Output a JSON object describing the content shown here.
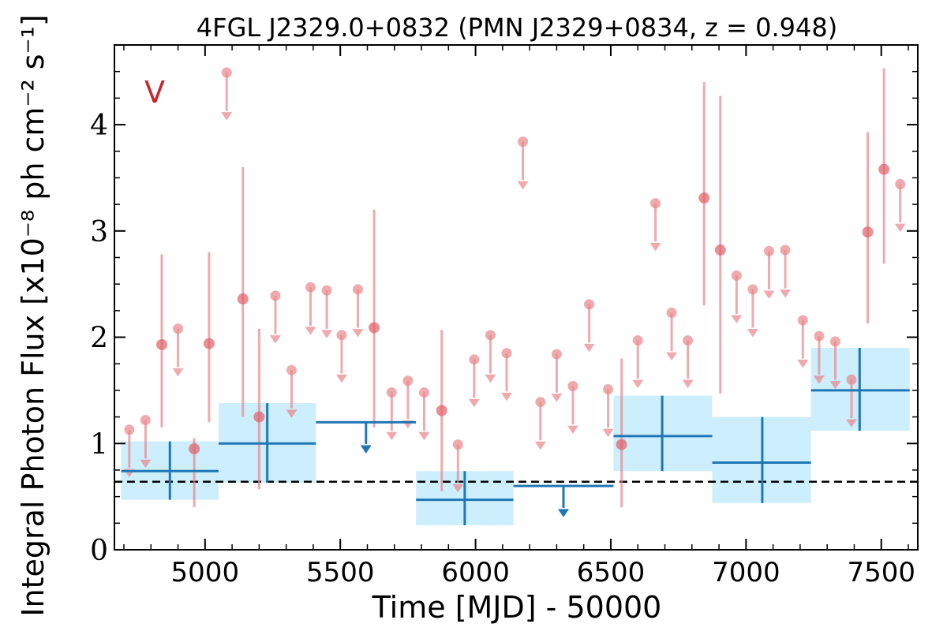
{
  "chart_data": {
    "type": "scatter",
    "title": "4FGL J2329.0+0832 (PMN J2329+0834, z = 0.948)",
    "xlabel": "Time [MJD] - 50000",
    "ylabel": "Integral Photon Flux [x10⁻⁸ ph cm⁻² s⁻¹]",
    "panel_tag": "V",
    "xlim": [
      4665,
      7635
    ],
    "ylim": [
      0,
      4.75
    ],
    "xticks": [
      5000,
      5500,
      6000,
      6500,
      7000,
      7500
    ],
    "yticks": [
      0,
      1,
      2,
      3,
      4
    ],
    "xtick_labels": [
      "5000",
      "5500",
      "6000",
      "6500",
      "7000",
      "7500"
    ],
    "ytick_labels": [
      "0",
      "1",
      "2",
      "3",
      "4"
    ],
    "mean_flux": 0.64,
    "colors": {
      "monthly": "#e8868a",
      "binned": "#1f77b4",
      "band": "#cdeefc",
      "mean_line": "#000000",
      "panel_tag": "#c8252c"
    },
    "monthly_detections": [
      {
        "x": 4960,
        "y": 0.95,
        "lo": 0.4,
        "hi": 1.05
      },
      {
        "x": 4840,
        "y": 1.93,
        "lo": 1.15,
        "hi": 2.78
      },
      {
        "x": 5015,
        "y": 1.94,
        "lo": 1.2,
        "hi": 2.8
      },
      {
        "x": 5140,
        "y": 2.36,
        "lo": 1.25,
        "hi": 3.6
      },
      {
        "x": 5200,
        "y": 1.25,
        "lo": 0.57,
        "hi": 2.08
      },
      {
        "x": 5625,
        "y": 2.09,
        "lo": 1.15,
        "hi": 3.2
      },
      {
        "x": 5875,
        "y": 1.31,
        "lo": 0.55,
        "hi": 2.07
      },
      {
        "x": 6540,
        "y": 0.99,
        "lo": 0.4,
        "hi": 1.8
      },
      {
        "x": 6845,
        "y": 3.31,
        "lo": 2.3,
        "hi": 4.4
      },
      {
        "x": 6905,
        "y": 2.82,
        "lo": 1.47,
        "hi": 4.27
      },
      {
        "x": 7450,
        "y": 2.99,
        "lo": 2.13,
        "hi": 3.93
      },
      {
        "x": 7510,
        "y": 3.58,
        "lo": 2.69,
        "hi": 4.53
      }
    ],
    "monthly_upper_limits": [
      {
        "x": 4720,
        "y": 1.13
      },
      {
        "x": 4780,
        "y": 1.22
      },
      {
        "x": 4900,
        "y": 2.08
      },
      {
        "x": 5080,
        "y": 4.49
      },
      {
        "x": 5260,
        "y": 2.39
      },
      {
        "x": 5320,
        "y": 1.69
      },
      {
        "x": 5390,
        "y": 2.47
      },
      {
        "x": 5450,
        "y": 2.44
      },
      {
        "x": 5505,
        "y": 2.02
      },
      {
        "x": 5565,
        "y": 2.45
      },
      {
        "x": 5690,
        "y": 1.48
      },
      {
        "x": 5750,
        "y": 1.59
      },
      {
        "x": 5810,
        "y": 1.48
      },
      {
        "x": 5935,
        "y": 0.99
      },
      {
        "x": 5995,
        "y": 1.79
      },
      {
        "x": 6055,
        "y": 2.02
      },
      {
        "x": 6115,
        "y": 1.85
      },
      {
        "x": 6175,
        "y": 3.84
      },
      {
        "x": 6240,
        "y": 1.39
      },
      {
        "x": 6300,
        "y": 1.84
      },
      {
        "x": 6360,
        "y": 1.54
      },
      {
        "x": 6420,
        "y": 2.31
      },
      {
        "x": 6490,
        "y": 1.51
      },
      {
        "x": 6600,
        "y": 1.97
      },
      {
        "x": 6665,
        "y": 3.26
      },
      {
        "x": 6725,
        "y": 2.23
      },
      {
        "x": 6785,
        "y": 1.97
      },
      {
        "x": 6965,
        "y": 2.58
      },
      {
        "x": 7025,
        "y": 2.45
      },
      {
        "x": 7085,
        "y": 2.81
      },
      {
        "x": 7145,
        "y": 2.82
      },
      {
        "x": 7210,
        "y": 2.16
      },
      {
        "x": 7270,
        "y": 2.01
      },
      {
        "x": 7330,
        "y": 1.96
      },
      {
        "x": 7390,
        "y": 1.6
      },
      {
        "x": 7570,
        "y": 3.44
      }
    ],
    "binned_detections": [
      {
        "x0": 4690,
        "x1": 5050,
        "xc": 4870,
        "y": 0.74,
        "ylo": 0.47,
        "yhi": 1.02
      },
      {
        "x0": 5050,
        "x1": 5410,
        "xc": 5230,
        "y": 1.0,
        "ylo": 0.63,
        "yhi": 1.38
      },
      {
        "x0": 5780,
        "x1": 6140,
        "xc": 5960,
        "y": 0.47,
        "ylo": 0.23,
        "yhi": 0.74
      },
      {
        "x0": 6510,
        "x1": 6875,
        "xc": 6690,
        "y": 1.07,
        "ylo": 0.74,
        "yhi": 1.45
      },
      {
        "x0": 6875,
        "x1": 7240,
        "xc": 7060,
        "y": 0.82,
        "ylo": 0.44,
        "yhi": 1.25
      },
      {
        "x0": 7240,
        "x1": 7605,
        "xc": 7420,
        "y": 1.5,
        "ylo": 1.12,
        "yhi": 1.9
      }
    ],
    "binned_upper_limits": [
      {
        "x0": 5410,
        "x1": 5780,
        "xc": 5595,
        "y": 1.2
      },
      {
        "x0": 6140,
        "x1": 6510,
        "xc": 6325,
        "y": 0.6
      }
    ]
  }
}
